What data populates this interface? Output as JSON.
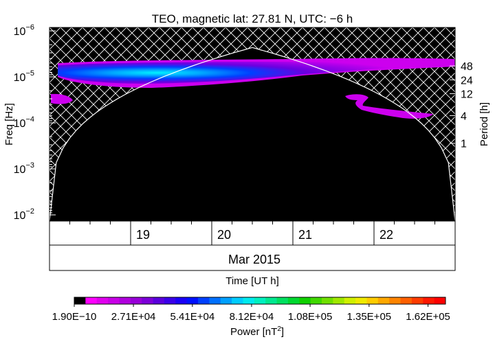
{
  "chart_data": {
    "type": "heatmap",
    "title": "TEO, magnetic lat:   27.81 N, UTC:  −6 h",
    "ylabel": "Freq [Hz]",
    "y2label": "Period [h]",
    "xlabel": "Time [UT h]",
    "y_scale": "log",
    "y_axis_inverted": true,
    "ylim": [
      1e-06,
      0.02
    ],
    "y_ticks": [
      {
        "value": 1e-06,
        "base": "10",
        "exp": "−6"
      },
      {
        "value": 1e-05,
        "base": "10",
        "exp": "−5"
      },
      {
        "value": 0.0001,
        "base": "10",
        "exp": "−4"
      },
      {
        "value": 0.001,
        "base": "10",
        "exp": "−3"
      },
      {
        "value": 0.01,
        "base": "10",
        "exp": "−2"
      }
    ],
    "period_ticks": [
      {
        "label": "48",
        "hours": 48
      },
      {
        "label": "24",
        "hours": 24
      },
      {
        "label": "12",
        "hours": 12
      },
      {
        "label": "4",
        "hours": 4
      },
      {
        "label": "1",
        "hours": 1
      }
    ],
    "x_range_days": [
      18.0,
      23.0
    ],
    "x_major_ticks": [
      {
        "label": "19",
        "day": 19
      },
      {
        "label": "20",
        "day": 20
      },
      {
        "label": "21",
        "day": 21
      },
      {
        "label": "22",
        "day": 22
      }
    ],
    "month_label": "Mar 2015",
    "colorbar": {
      "label_text": "Power [nT",
      "label_sup": "2",
      "label_end": "]",
      "range": [
        1.9e-10,
        170000.0
      ],
      "tick_labels": [
        "1.90E−10",
        "2.71E+04",
        "5.41E+04",
        "8.12E+04",
        "1.08E+05",
        "1.35E+05",
        "1.62E+05"
      ],
      "colors": [
        "#000000",
        "#ff00ff",
        "#e000ee",
        "#c800e6",
        "#b000dd",
        "#9800d8",
        "#7c00d8",
        "#5a00dc",
        "#3a00e8",
        "#1a00f6",
        "#0010ff",
        "#0040ff",
        "#0070ff",
        "#00a0ff",
        "#00ccff",
        "#00eaee",
        "#00f0c0",
        "#00e890",
        "#00e060",
        "#00d830",
        "#10d000",
        "#40d800",
        "#70e000",
        "#a0e800",
        "#d0f000",
        "#f0ea00",
        "#ffcc00",
        "#ffa800",
        "#ff8400",
        "#ff6000",
        "#ff3c00",
        "#ff1800",
        "#ff0000"
      ]
    },
    "cone_of_influence_peak": {
      "day": 20.5,
      "freq": 2.3e-06
    },
    "features": [
      {
        "name": "main-band",
        "day_range": [
          18.1,
          23.0
        ],
        "freq_range": [
          6e-06,
          2.2e-05
        ],
        "peak_day": 19.7,
        "peak_freq": 1.1e-05,
        "peak_power": 85000.0
      },
      {
        "name": "low-tail",
        "day_range": [
          18.1,
          18.3
        ],
        "freq_range": [
          2.5e-05,
          5e-05
        ],
        "peak_power": 15000.0
      },
      {
        "name": "secondary-band",
        "day_range": [
          21.6,
          22.7
        ],
        "freq_range": [
          3e-05,
          9e-05
        ],
        "peak_power": 12000.0
      }
    ]
  }
}
